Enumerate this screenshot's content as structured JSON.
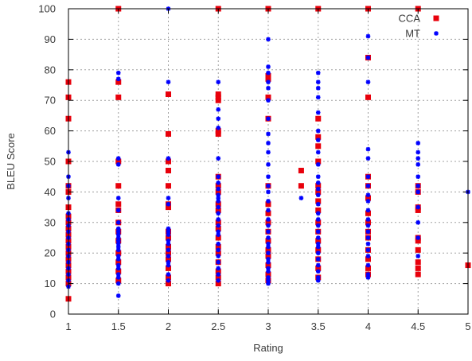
{
  "chart_data": {
    "type": "scatter",
    "title": "",
    "xlabel": "Rating",
    "ylabel": "BLEU Score",
    "xlim": [
      1,
      5
    ],
    "ylim": [
      0,
      100
    ],
    "xticks": [
      1,
      1.5,
      2,
      2.5,
      3,
      3.5,
      4,
      4.5,
      5
    ],
    "xtick_labels": [
      "1",
      "1.5",
      "2",
      "2.5",
      "3",
      "3.5",
      "4",
      "4.5",
      "5"
    ],
    "yticks": [
      0,
      10,
      20,
      30,
      40,
      50,
      60,
      70,
      80,
      90,
      100
    ],
    "ytick_labels": [
      "0",
      "10",
      "20",
      "30",
      "40",
      "50",
      "60",
      "70",
      "80",
      "90",
      "100"
    ],
    "grid": true,
    "legend_position": "top-right",
    "series": [
      {
        "name": "CCA",
        "color": "#e8000b",
        "marker": "square",
        "points": [
          [
            1,
            5
          ],
          [
            1,
            10
          ],
          [
            1,
            12
          ],
          [
            1,
            14
          ],
          [
            1,
            16
          ],
          [
            1,
            18
          ],
          [
            1,
            20
          ],
          [
            1,
            22
          ],
          [
            1,
            24
          ],
          [
            1,
            26
          ],
          [
            1,
            28
          ],
          [
            1,
            30
          ],
          [
            1,
            32
          ],
          [
            1,
            35
          ],
          [
            1,
            40
          ],
          [
            1,
            42
          ],
          [
            1,
            50
          ],
          [
            1,
            64
          ],
          [
            1,
            71
          ],
          [
            1,
            76
          ],
          [
            1.5,
            11
          ],
          [
            1.5,
            14
          ],
          [
            1.5,
            17
          ],
          [
            1.5,
            20
          ],
          [
            1.5,
            24
          ],
          [
            1.5,
            27
          ],
          [
            1.5,
            30
          ],
          [
            1.5,
            34
          ],
          [
            1.5,
            36
          ],
          [
            1.5,
            42
          ],
          [
            1.5,
            50
          ],
          [
            1.5,
            71
          ],
          [
            1.5,
            76
          ],
          [
            1.5,
            100
          ],
          [
            2,
            10
          ],
          [
            2,
            12
          ],
          [
            2,
            15
          ],
          [
            2,
            18
          ],
          [
            2,
            20
          ],
          [
            2,
            22
          ],
          [
            2,
            25
          ],
          [
            2,
            27
          ],
          [
            2,
            35
          ],
          [
            2,
            36
          ],
          [
            2,
            42
          ],
          [
            2,
            47
          ],
          [
            2,
            50
          ],
          [
            2,
            59
          ],
          [
            2,
            72
          ],
          [
            2.5,
            10
          ],
          [
            2.5,
            12
          ],
          [
            2.5,
            14
          ],
          [
            2.5,
            17
          ],
          [
            2.5,
            20
          ],
          [
            2.5,
            22
          ],
          [
            2.5,
            25
          ],
          [
            2.5,
            28
          ],
          [
            2.5,
            30
          ],
          [
            2.5,
            34
          ],
          [
            2.5,
            36
          ],
          [
            2.5,
            40
          ],
          [
            2.5,
            42
          ],
          [
            2.5,
            45
          ],
          [
            2.5,
            59
          ],
          [
            2.5,
            60
          ],
          [
            2.5,
            70
          ],
          [
            2.5,
            71
          ],
          [
            2.5,
            72
          ],
          [
            2.5,
            100
          ],
          [
            3,
            11
          ],
          [
            3,
            13
          ],
          [
            3,
            16
          ],
          [
            3,
            19
          ],
          [
            3,
            21
          ],
          [
            3,
            24
          ],
          [
            3,
            27
          ],
          [
            3,
            30
          ],
          [
            3,
            33
          ],
          [
            3,
            36
          ],
          [
            3,
            42
          ],
          [
            3,
            64
          ],
          [
            3,
            71
          ],
          [
            3,
            77
          ],
          [
            3,
            78
          ],
          [
            3,
            100
          ],
          [
            3.33,
            42
          ],
          [
            3.33,
            47
          ],
          [
            3.5,
            12
          ],
          [
            3.5,
            15
          ],
          [
            3.5,
            18
          ],
          [
            3.5,
            21
          ],
          [
            3.5,
            24
          ],
          [
            3.5,
            27
          ],
          [
            3.5,
            30
          ],
          [
            3.5,
            34
          ],
          [
            3.5,
            37
          ],
          [
            3.5,
            40
          ],
          [
            3.5,
            42
          ],
          [
            3.5,
            50
          ],
          [
            3.5,
            55
          ],
          [
            3.5,
            58
          ],
          [
            3.5,
            64
          ],
          [
            3.5,
            100
          ],
          [
            4,
            13
          ],
          [
            4,
            15
          ],
          [
            4,
            18
          ],
          [
            4,
            21
          ],
          [
            4,
            25
          ],
          [
            4,
            27
          ],
          [
            4,
            30
          ],
          [
            4,
            33
          ],
          [
            4,
            38
          ],
          [
            4,
            42
          ],
          [
            4,
            45
          ],
          [
            4,
            71
          ],
          [
            4,
            84
          ],
          [
            4,
            100
          ],
          [
            4.5,
            13
          ],
          [
            4.5,
            15
          ],
          [
            4.5,
            17
          ],
          [
            4.5,
            21
          ],
          [
            4.5,
            24
          ],
          [
            4.5,
            25
          ],
          [
            4.5,
            34
          ],
          [
            4.5,
            35
          ],
          [
            4.5,
            40
          ],
          [
            4.5,
            42
          ],
          [
            4.5,
            100
          ],
          [
            5,
            16
          ]
        ]
      },
      {
        "name": "MT",
        "color": "#0000ff",
        "marker": "star",
        "points": [
          [
            1,
            9
          ],
          [
            1,
            11
          ],
          [
            1,
            13
          ],
          [
            1,
            15
          ],
          [
            1,
            17
          ],
          [
            1,
            19
          ],
          [
            1,
            21
          ],
          [
            1,
            23
          ],
          [
            1,
            25
          ],
          [
            1,
            27
          ],
          [
            1,
            29
          ],
          [
            1,
            31
          ],
          [
            1,
            33
          ],
          [
            1,
            38
          ],
          [
            1,
            42
          ],
          [
            1,
            45
          ],
          [
            1,
            53
          ],
          [
            1.5,
            6
          ],
          [
            1.5,
            10
          ],
          [
            1.5,
            12
          ],
          [
            1.5,
            13
          ],
          [
            1.5,
            15
          ],
          [
            1.5,
            16
          ],
          [
            1.5,
            18
          ],
          [
            1.5,
            19
          ],
          [
            1.5,
            21
          ],
          [
            1.5,
            22
          ],
          [
            1.5,
            23
          ],
          [
            1.5,
            24
          ],
          [
            1.5,
            25
          ],
          [
            1.5,
            26
          ],
          [
            1.5,
            27
          ],
          [
            1.5,
            28
          ],
          [
            1.5,
            30
          ],
          [
            1.5,
            34
          ],
          [
            1.5,
            38
          ],
          [
            1.5,
            49
          ],
          [
            1.5,
            51
          ],
          [
            1.5,
            77
          ],
          [
            1.5,
            79
          ],
          [
            2,
            11
          ],
          [
            2,
            13
          ],
          [
            2,
            16
          ],
          [
            2,
            17
          ],
          [
            2,
            19
          ],
          [
            2,
            21
          ],
          [
            2,
            23
          ],
          [
            2,
            24
          ],
          [
            2,
            26
          ],
          [
            2,
            27
          ],
          [
            2,
            28
          ],
          [
            2,
            36
          ],
          [
            2,
            38
          ],
          [
            2,
            51
          ],
          [
            2,
            76
          ],
          [
            2,
            100
          ],
          [
            2.5,
            11
          ],
          [
            2.5,
            13
          ],
          [
            2.5,
            15
          ],
          [
            2.5,
            17
          ],
          [
            2.5,
            19
          ],
          [
            2.5,
            21
          ],
          [
            2.5,
            23
          ],
          [
            2.5,
            26
          ],
          [
            2.5,
            27
          ],
          [
            2.5,
            29
          ],
          [
            2.5,
            31
          ],
          [
            2.5,
            33
          ],
          [
            2.5,
            35
          ],
          [
            2.5,
            37
          ],
          [
            2.5,
            38
          ],
          [
            2.5,
            39
          ],
          [
            2.5,
            41
          ],
          [
            2.5,
            43
          ],
          [
            2.5,
            45
          ],
          [
            2.5,
            51
          ],
          [
            2.5,
            61
          ],
          [
            2.5,
            64
          ],
          [
            2.5,
            67
          ],
          [
            2.5,
            76
          ],
          [
            3,
            10
          ],
          [
            3,
            11
          ],
          [
            3,
            12
          ],
          [
            3,
            14
          ],
          [
            3,
            15
          ],
          [
            3,
            17
          ],
          [
            3,
            18
          ],
          [
            3,
            20
          ],
          [
            3,
            22
          ],
          [
            3,
            23
          ],
          [
            3,
            25
          ],
          [
            3,
            27
          ],
          [
            3,
            29
          ],
          [
            3,
            31
          ],
          [
            3,
            34
          ],
          [
            3,
            37
          ],
          [
            3,
            40
          ],
          [
            3,
            42
          ],
          [
            3,
            45
          ],
          [
            3,
            49
          ],
          [
            3,
            53
          ],
          [
            3,
            56
          ],
          [
            3,
            59
          ],
          [
            3,
            64
          ],
          [
            3,
            70
          ],
          [
            3,
            74
          ],
          [
            3,
            76
          ],
          [
            3,
            79
          ],
          [
            3,
            81
          ],
          [
            3,
            90
          ],
          [
            3.33,
            38
          ],
          [
            3.5,
            11
          ],
          [
            3.5,
            12
          ],
          [
            3.5,
            14
          ],
          [
            3.5,
            16
          ],
          [
            3.5,
            18
          ],
          [
            3.5,
            20
          ],
          [
            3.5,
            22
          ],
          [
            3.5,
            23
          ],
          [
            3.5,
            25
          ],
          [
            3.5,
            27
          ],
          [
            3.5,
            29
          ],
          [
            3.5,
            31
          ],
          [
            3.5,
            33
          ],
          [
            3.5,
            36
          ],
          [
            3.5,
            39
          ],
          [
            3.5,
            41
          ],
          [
            3.5,
            43
          ],
          [
            3.5,
            45
          ],
          [
            3.5,
            49
          ],
          [
            3.5,
            53
          ],
          [
            3.5,
            57
          ],
          [
            3.5,
            60
          ],
          [
            3.5,
            66
          ],
          [
            3.5,
            71
          ],
          [
            3.5,
            74
          ],
          [
            3.5,
            76
          ],
          [
            3.5,
            79
          ],
          [
            4,
            12
          ],
          [
            4,
            13
          ],
          [
            4,
            16
          ],
          [
            4,
            19
          ],
          [
            4,
            21
          ],
          [
            4,
            23
          ],
          [
            4,
            25
          ],
          [
            4,
            27
          ],
          [
            4,
            29
          ],
          [
            4,
            31
          ],
          [
            4,
            34
          ],
          [
            4,
            37
          ],
          [
            4,
            39
          ],
          [
            4,
            42
          ],
          [
            4,
            45
          ],
          [
            4,
            51
          ],
          [
            4,
            54
          ],
          [
            4,
            76
          ],
          [
            4,
            84
          ],
          [
            4,
            91
          ],
          [
            4.5,
            19
          ],
          [
            4.5,
            25
          ],
          [
            4.5,
            30
          ],
          [
            4.5,
            35
          ],
          [
            4.5,
            40
          ],
          [
            4.5,
            42
          ],
          [
            4.5,
            45
          ],
          [
            4.5,
            49
          ],
          [
            4.5,
            51
          ],
          [
            4.5,
            53
          ],
          [
            4.5,
            56
          ],
          [
            5,
            40
          ]
        ]
      }
    ]
  }
}
